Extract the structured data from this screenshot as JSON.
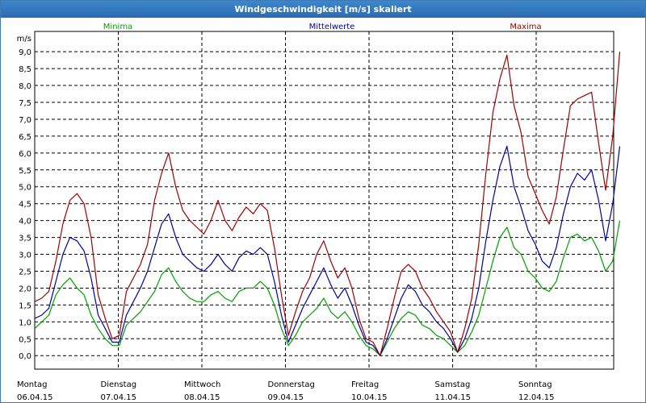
{
  "window": {
    "title": "Windgeschwindigkeit [m/s] skaliert"
  },
  "chart_data": {
    "type": "line",
    "title": "Windgeschwindigkeit [m/s] skaliert",
    "ylabel": "m/s",
    "ylim": [
      -0.4,
      9.6
    ],
    "yticks": [
      "0,0",
      "0,5",
      "1,0",
      "1,5",
      "2,0",
      "2,5",
      "3,0",
      "3,5",
      "4,0",
      "4,5",
      "5,0",
      "5,5",
      "6,0",
      "6,5",
      "7,0",
      "7,5",
      "8,0",
      "8,5",
      "9,0"
    ],
    "days": [
      {
        "day": "Montag",
        "date": "06.04.15"
      },
      {
        "day": "Dienstag",
        "date": "07.04.15"
      },
      {
        "day": "Mittwoch",
        "date": "08.04.15"
      },
      {
        "day": "Donnerstag",
        "date": "09.04.15"
      },
      {
        "day": "Freitag",
        "date": "10.04.15"
      },
      {
        "day": "Samstag",
        "date": "11.04.15"
      },
      {
        "day": "Sonntag",
        "date": "12.04.15"
      }
    ],
    "grid": true,
    "legend_position": "top",
    "series": [
      {
        "name": "Minima",
        "color": "#00a000",
        "values": [
          0.8,
          1.0,
          1.2,
          1.8,
          2.1,
          2.3,
          2.0,
          1.8,
          1.2,
          0.8,
          0.5,
          0.3,
          0.3,
          0.9,
          1.1,
          1.3,
          1.6,
          1.9,
          2.4,
          2.6,
          2.2,
          1.9,
          1.7,
          1.6,
          1.6,
          1.8,
          1.9,
          1.7,
          1.6,
          1.9,
          2.0,
          2.0,
          2.2,
          2.0,
          1.5,
          0.8,
          0.3,
          0.6,
          1.0,
          1.2,
          1.4,
          1.7,
          1.3,
          1.1,
          1.3,
          1.0,
          0.6,
          0.3,
          0.2,
          0.0,
          0.4,
          0.8,
          1.1,
          1.3,
          1.2,
          0.9,
          0.8,
          0.6,
          0.5,
          0.3,
          0.1,
          0.3,
          0.7,
          1.2,
          2.0,
          2.8,
          3.5,
          3.8,
          3.2,
          3.0,
          2.5,
          2.3,
          2.0,
          1.9,
          2.2,
          2.9,
          3.5,
          3.6,
          3.4,
          3.5,
          3.1,
          2.5,
          2.8,
          4.0
        ]
      },
      {
        "name": "Mittelwerte",
        "color": "#0000a0",
        "values": [
          1.1,
          1.2,
          1.4,
          2.2,
          3.0,
          3.5,
          3.4,
          3.1,
          2.3,
          1.2,
          0.8,
          0.4,
          0.4,
          1.2,
          1.6,
          2.0,
          2.5,
          3.2,
          3.9,
          4.2,
          3.5,
          3.0,
          2.8,
          2.6,
          2.5,
          2.7,
          3.0,
          2.7,
          2.5,
          2.9,
          3.1,
          3.0,
          3.2,
          3.0,
          2.2,
          1.2,
          0.4,
          0.9,
          1.4,
          1.8,
          2.2,
          2.6,
          2.1,
          1.7,
          2.0,
          1.5,
          0.9,
          0.4,
          0.3,
          0.0,
          0.5,
          1.1,
          1.7,
          2.1,
          1.9,
          1.5,
          1.3,
          1.0,
          0.8,
          0.5,
          0.1,
          0.5,
          1.1,
          2.0,
          3.4,
          4.6,
          5.6,
          6.2,
          5.0,
          4.4,
          3.7,
          3.3,
          2.8,
          2.6,
          3.2,
          4.2,
          5.0,
          5.4,
          5.2,
          5.5,
          4.6,
          3.4,
          4.5,
          6.2
        ]
      },
      {
        "name": "Maxima",
        "color": "#a00000",
        "values": [
          1.6,
          1.7,
          1.9,
          2.8,
          3.9,
          4.6,
          4.8,
          4.5,
          3.5,
          1.8,
          1.1,
          0.5,
          0.6,
          1.9,
          2.3,
          2.7,
          3.3,
          4.6,
          5.4,
          6.0,
          5.0,
          4.3,
          4.0,
          3.8,
          3.6,
          4.0,
          4.6,
          4.0,
          3.7,
          4.1,
          4.4,
          4.2,
          4.5,
          4.3,
          3.2,
          1.8,
          0.6,
          1.3,
          1.9,
          2.3,
          3.0,
          3.4,
          2.8,
          2.3,
          2.6,
          2.0,
          1.1,
          0.5,
          0.4,
          0.0,
          0.8,
          1.7,
          2.5,
          2.7,
          2.5,
          2.0,
          1.7,
          1.3,
          1.0,
          0.7,
          0.1,
          0.8,
          1.7,
          3.3,
          5.4,
          7.2,
          8.2,
          8.9,
          7.4,
          6.6,
          5.3,
          4.8,
          4.3,
          3.9,
          4.7,
          6.1,
          7.4,
          7.6,
          7.7,
          7.8,
          6.3,
          4.9,
          6.5,
          9.0
        ]
      }
    ]
  }
}
